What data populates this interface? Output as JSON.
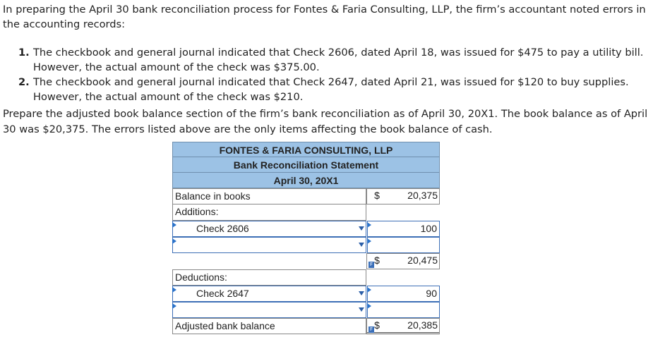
{
  "intro": "In preparing the April 30 bank reconciliation process for Fontes & Faria Consulting, LLP, the firm’s accountant noted errors in the accounting records:",
  "items": [
    {
      "num": "1.",
      "text": "The checkbook and general journal indicated that Check 2606, dated April 18, was issued for $475 to pay a utility bill. However, the actual amount of the check was $375.00."
    },
    {
      "num": "2.",
      "text": "The checkbook and general journal indicated that Check 2647, dated April 21, was issued for $120 to buy supplies. However, the actual amount of the check was $210."
    }
  ],
  "prepare": "Prepare the adjusted book balance section of the firm’s bank reconciliation as of April 30, 20X1. The book balance as of April 30 was $20,375. The errors listed above are the only items affecting the book balance of cash.",
  "table": {
    "company": "FONTES & FARIA CONSULTING, LLP",
    "statement": "Bank Reconciliation Statement",
    "date": "April 30, 20X1",
    "balance_label": "Balance in books",
    "balance_dollar": "$",
    "balance_amount": "20,375",
    "additions_label": "Additions:",
    "add1_label": "Check 2606",
    "add1_amount": "100",
    "add2_label": "",
    "add2_amount": "",
    "subtotal_dollar": "$",
    "subtotal_amount": "20,475",
    "deductions_label": "Deductions:",
    "ded1_label": "Check 2647",
    "ded1_amount": "90",
    "ded2_label": "",
    "ded2_amount": "",
    "adjusted_label": "Adjusted bank balance",
    "adjusted_dollar": "$",
    "adjusted_amount": "20,385",
    "f_badge": "F"
  }
}
